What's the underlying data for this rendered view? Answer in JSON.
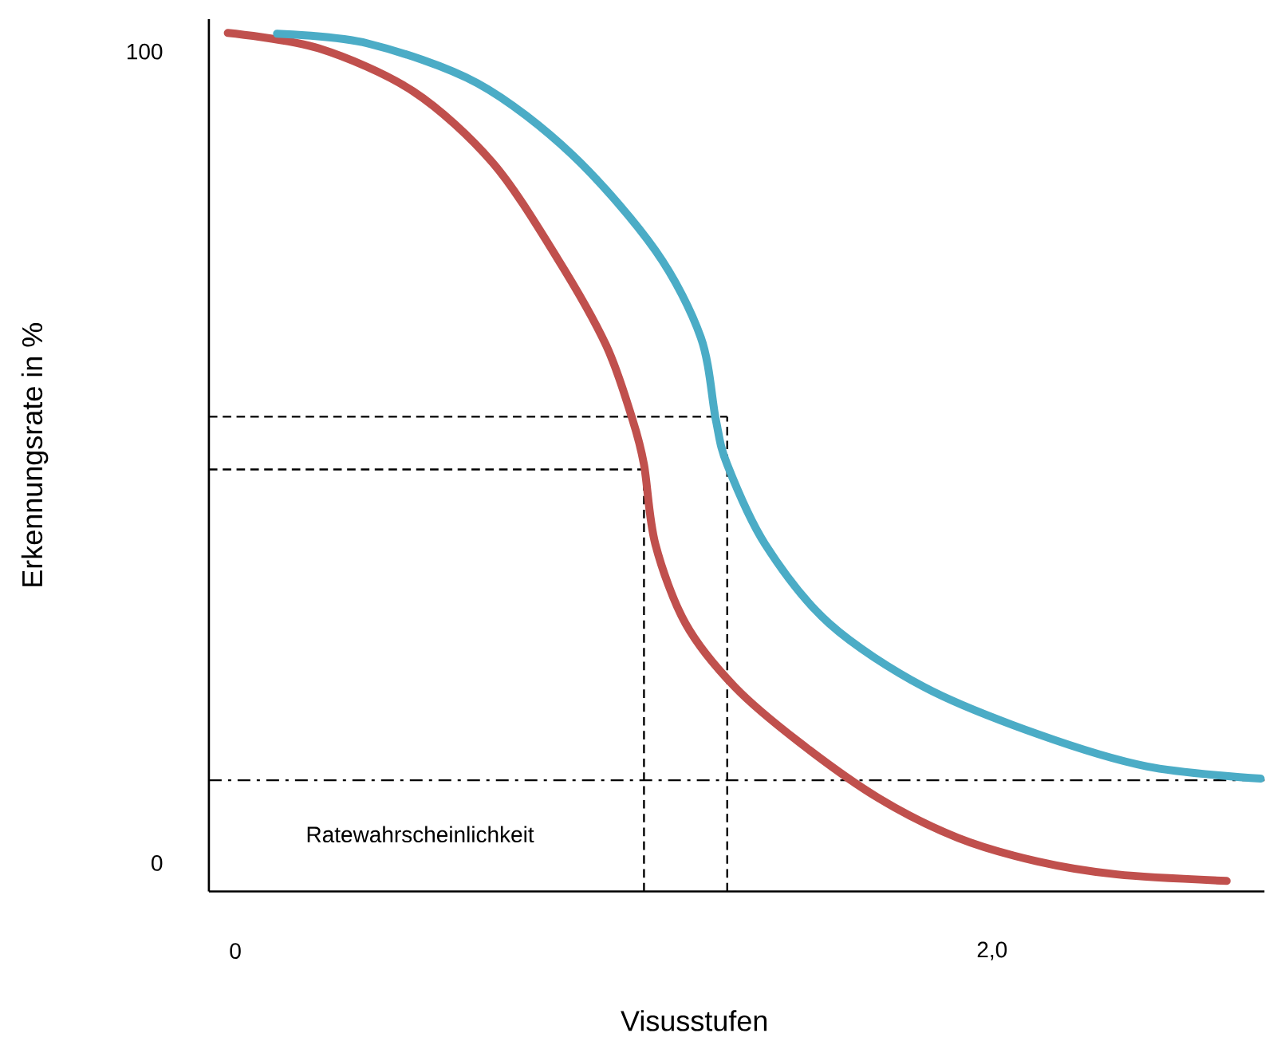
{
  "chart_data": {
    "type": "line",
    "xlabel": "Visusstufen",
    "ylabel": "Erkennungsrate in %",
    "x": [
      -0.02,
      0.22,
      0.47,
      0.68,
      0.85,
      0.98,
      1.05,
      1.08,
      1.11,
      1.19,
      1.32,
      1.49,
      1.7,
      1.91,
      2.12,
      2.33,
      2.62
    ],
    "series": [
      {
        "color": "#c0504d",
        "values": [
          102.3,
          100.4,
          95.1,
          86.3,
          74.6,
          63.8,
          54.6,
          49.1,
          39.3,
          29.5,
          21.7,
          14.9,
          8.0,
          3.1,
          0.2,
          -1.4,
          -2.2
        ]
      },
      {
        "color": "#4bacc6",
        "x": [
          0.11,
          0.35,
          0.64,
          0.89,
          1.11,
          1.23,
          1.27,
          1.3,
          1.4,
          1.57,
          1.82,
          2.12,
          2.41,
          2.71
        ],
        "values": [
          102.2,
          101.0,
          96.1,
          87.3,
          75.5,
          64.8,
          54.6,
          49.1,
          39.3,
          29.5,
          21.7,
          15.9,
          11.9,
          10.4
        ]
      }
    ],
    "xlim": [
      -0.07,
      2.72
    ],
    "ylim": [
      -3.5,
      104
    ],
    "xticks": [
      0,
      {
        "value": 2,
        "label": "2,0"
      }
    ],
    "yticks": [
      0,
      100
    ],
    "ref_lines": [
      {
        "axis": "y",
        "value": 55,
        "line_style": "dashed"
      },
      {
        "axis": "y",
        "value": 48.5,
        "line_style": "dashed"
      },
      {
        "axis": "x",
        "value": 1.3,
        "line_style": "dashed"
      },
      {
        "axis": "x",
        "value": 1.08,
        "line_style": "dashed"
      },
      {
        "axis": "y",
        "value": 10.2,
        "line_style": "dashdot",
        "label": "Ratewahrscheinlichkeit"
      }
    ],
    "marker": "none",
    "line_style": "solid"
  }
}
